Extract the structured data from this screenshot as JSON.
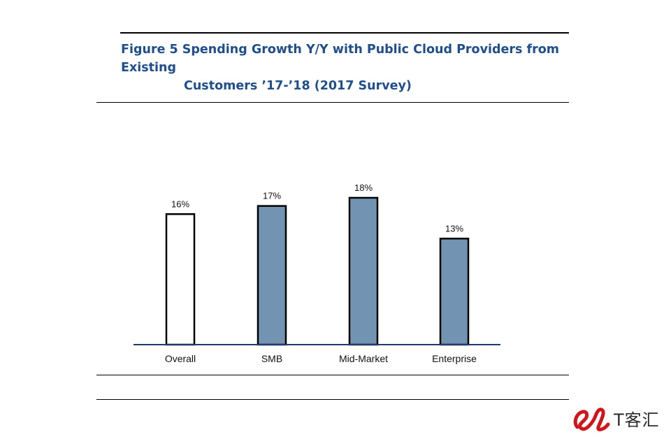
{
  "title": {
    "line1": "Figure 5 Spending Growth Y/Y with Public Cloud Providers from Existing",
    "line2": "Customers ’17-’18 (2017 Survey)"
  },
  "chart_data": {
    "type": "bar",
    "title": "Figure 5 Spending Growth Y/Y with Public Cloud Providers from Existing Customers ’17-’18 (2017 Survey)",
    "categories": [
      "Overall",
      "SMB",
      "Mid-Market",
      "Enterprise"
    ],
    "values": [
      16,
      17,
      18,
      13
    ],
    "labels": [
      "16%",
      "17%",
      "18%",
      "13%"
    ],
    "xlabel": "",
    "ylabel": "",
    "ylim": [
      0,
      18
    ],
    "grid": false,
    "legend": "none",
    "colors": {
      "highlight": "#ffffff",
      "bar": "#7393b3",
      "outline": "#000000",
      "axis": "#1f3a6e"
    }
  },
  "watermark": {
    "text": "T客汇",
    "color": "#d0161b"
  }
}
